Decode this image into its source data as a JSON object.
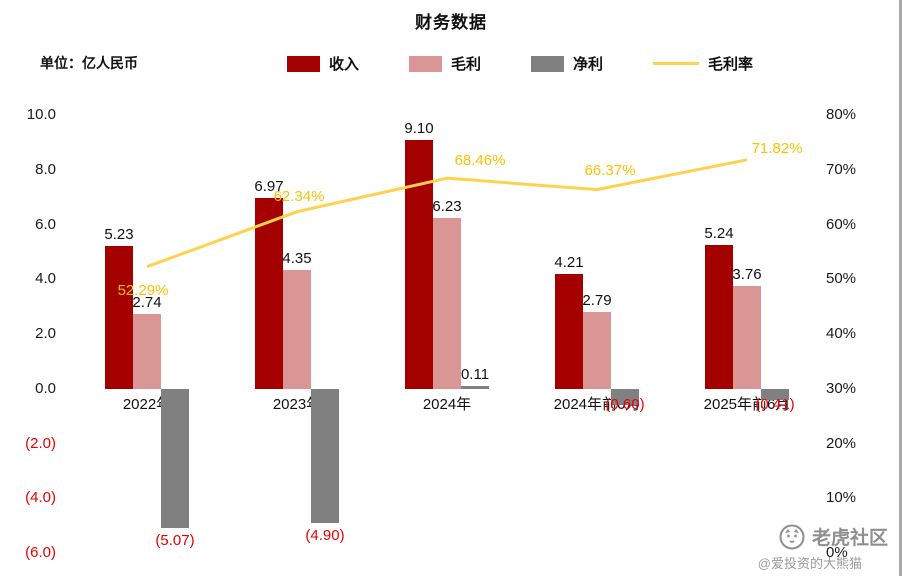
{
  "title": "财务数据",
  "unit_label": "单位：亿人民币",
  "legend": [
    {
      "label": "收入",
      "color": "#A40000",
      "type": "rect"
    },
    {
      "label": "毛利",
      "color": "#D99694",
      "type": "rect"
    },
    {
      "label": "净利",
      "color": "#808080",
      "type": "rect"
    },
    {
      "label": "毛利率",
      "color": "#FFD24D",
      "type": "line"
    }
  ],
  "chart_data": {
    "type": "bar",
    "subtype": "grouped-bars-with-line",
    "title": "财务数据",
    "unit": "亿人民币",
    "categories": [
      "2022年",
      "2023年",
      "2024年",
      "2024年前6月",
      "2025年前6月"
    ],
    "series": [
      {
        "name": "收入",
        "type": "bar",
        "axis": "left",
        "color": "#A40000",
        "values": [
          5.23,
          6.97,
          9.1,
          4.21,
          5.24
        ],
        "labels": [
          "5.23",
          "6.97",
          "9.10",
          "4.21",
          "5.24"
        ]
      },
      {
        "name": "毛利",
        "type": "bar",
        "axis": "left",
        "color": "#D99694",
        "values": [
          2.74,
          4.35,
          6.23,
          2.79,
          3.76
        ],
        "labels": [
          "2.74",
          "4.35",
          "6.23",
          "2.79",
          "3.76"
        ]
      },
      {
        "name": "净利",
        "type": "bar",
        "axis": "left",
        "color": "#808080",
        "values": [
          -5.07,
          -4.9,
          0.11,
          -0.6,
          -0.41
        ],
        "labels": [
          "(5.07)",
          "(4.90)",
          "0.11",
          "(0.60)",
          "(0.41)"
        ]
      },
      {
        "name": "毛利率",
        "type": "line",
        "axis": "right",
        "color": "#FFD24D",
        "values": [
          52.29,
          62.34,
          68.46,
          66.37,
          71.82
        ],
        "labels": [
          "52.29%",
          "62.34%",
          "68.46%",
          "66.37%",
          "71.82%"
        ]
      }
    ],
    "left_axis": {
      "min": -6,
      "max": 10,
      "values": [
        10,
        8,
        6,
        4,
        2,
        0,
        -2,
        -4,
        -6
      ],
      "ticks": [
        "10.0",
        "8.0",
        "6.0",
        "4.0",
        "2.0",
        "0.0",
        "(2.0)",
        "(4.0)",
        "(6.0)"
      ]
    },
    "right_axis": {
      "min": 0,
      "max": 80,
      "values": [
        80,
        70,
        60,
        50,
        40,
        30,
        20,
        10,
        0
      ],
      "ticks": [
        "80%",
        "70%",
        "60%",
        "50%",
        "40%",
        "30%",
        "20%",
        "10%",
        "0%"
      ]
    },
    "grid": false,
    "legend_position": "top"
  },
  "colors": {
    "revenue": "#A40000",
    "gross_profit": "#D99694",
    "net_profit": "#808080",
    "margin_line": "#FFD24D",
    "margin_label": "#FFC000",
    "negative_text": "#E60000"
  },
  "watermark": {
    "brand": "老虎社区",
    "handle": "@爱投资的大熊猫"
  }
}
